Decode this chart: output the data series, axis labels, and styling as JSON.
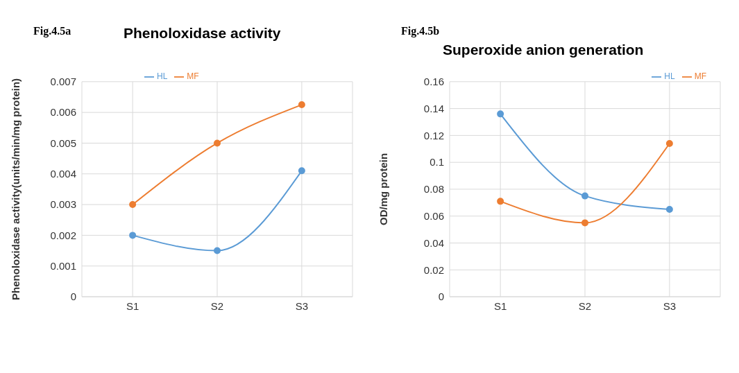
{
  "chart_data": [
    {
      "type": "line",
      "title": "Phenoloxidase activity",
      "annotations": [
        "Fig.4.5a"
      ],
      "ylabel": "Phenoloxidase activity(units/min/mg protein)",
      "categories": [
        "S1",
        "S2",
        "S3"
      ],
      "series": [
        {
          "name": "HL",
          "color": "#5b9bd5",
          "values": [
            0.002,
            0.0015,
            0.0041
          ]
        },
        {
          "name": "MF",
          "color": "#ed7d31",
          "values": [
            0.003,
            0.005,
            0.00625
          ]
        }
      ],
      "ylim": [
        0,
        0.007
      ],
      "yticks": [
        0,
        0.001,
        0.002,
        0.003,
        0.004,
        0.005,
        0.006,
        0.007
      ],
      "grid": true,
      "legend": "top",
      "marker": "circle"
    },
    {
      "type": "line",
      "title": "Superoxide anion generation",
      "annotations": [
        "Fig.4.5b"
      ],
      "ylabel": "OD/mg protein",
      "categories": [
        "S1",
        "S2",
        "S3"
      ],
      "series": [
        {
          "name": "HL",
          "color": "#5b9bd5",
          "values": [
            0.136,
            0.075,
            0.065
          ]
        },
        {
          "name": "MF",
          "color": "#ed7d31",
          "values": [
            0.071,
            0.055,
            0.114
          ]
        }
      ],
      "ylim": [
        0,
        0.16
      ],
      "yticks": [
        0,
        0.02,
        0.04,
        0.06,
        0.08,
        0.1,
        0.12,
        0.14,
        0.16
      ],
      "grid": true,
      "legend": "top right",
      "marker": "circle"
    }
  ]
}
